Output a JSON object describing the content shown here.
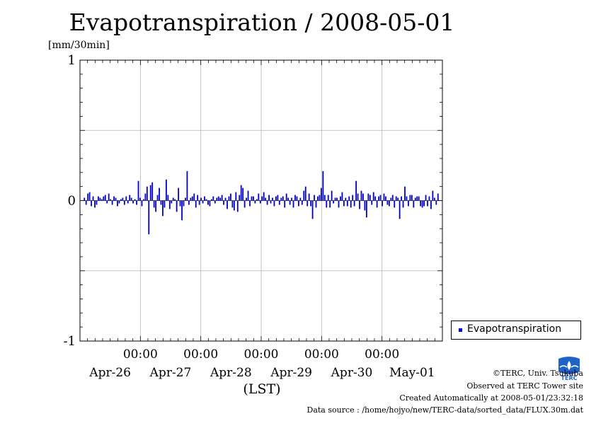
{
  "title": "Evapotranspiration / 2008-05-01",
  "legend": {
    "label": "Evapotranspiration"
  },
  "credits": {
    "copyright": "©TERC, Univ. Tsukuba",
    "observed": "Observed at TERC Tower site",
    "created": "Created Automatically at 2008-05-01/23:32:18",
    "source": "Data source : /home/hojyo/new/TERC-data/sorted_data/FLUX.30m.dat"
  },
  "logo": {
    "text": "TERC"
  },
  "chart_data": {
    "type": "bar",
    "title": "Evapotranspiration / 2008-05-01",
    "ylabel": "[mm/30min]",
    "xlabel": "(LST)",
    "ylim": [
      -1,
      1
    ],
    "yticks": [
      {
        "value": -1,
        "label": "-1"
      },
      {
        "value": 0,
        "label": "0"
      },
      {
        "value": 1,
        "label": "1"
      }
    ],
    "xlim": [
      0,
      6
    ],
    "xticks": [
      {
        "value": 1,
        "time": "00:00",
        "date": ""
      },
      {
        "value": 2,
        "time": "00:00",
        "date": ""
      },
      {
        "value": 3,
        "time": "00:00",
        "date": ""
      },
      {
        "value": 4,
        "time": "00:00",
        "date": ""
      },
      {
        "value": 5,
        "time": "00:00",
        "date": ""
      }
    ],
    "date_labels": [
      "Apr-26",
      "Apr-27",
      "Apr-28",
      "Apr-29",
      "Apr-30",
      "May-01"
    ],
    "grid": true,
    "legend_position": "right",
    "color": "#0000c8",
    "series": [
      {
        "name": "Evapotranspiration",
        "values": [
          0.02,
          -0.03,
          0.05,
          0.06,
          -0.04,
          0.03,
          -0.05,
          -0.03,
          0.03,
          0.02,
          0.01,
          0.03,
          0.04,
          -0.02,
          0.05,
          0.01,
          -0.03,
          0.03,
          0.02,
          -0.04,
          -0.02,
          0.01,
          0.02,
          -0.03,
          0.03,
          -0.02,
          0.04,
          0.02,
          -0.02,
          0.01,
          -0.03,
          0.14,
          0.02,
          -0.04,
          0.01,
          0.05,
          0.1,
          -0.24,
          0.11,
          0.13,
          -0.05,
          -0.08,
          0.04,
          0.09,
          -0.03,
          -0.11,
          -0.05,
          0.15,
          0.04,
          -0.06,
          -0.02,
          0.02,
          0.01,
          -0.08,
          0.09,
          -0.04,
          -0.14,
          -0.04,
          0.02,
          0.21,
          -0.03,
          0.02,
          0.03,
          0.05,
          -0.05,
          0.04,
          -0.03,
          0.02,
          -0.02,
          0.03,
          0.01,
          -0.03,
          -0.04,
          0.01,
          0.03,
          -0.02,
          0.02,
          0.03,
          0.02,
          0.04,
          -0.03,
          0.02,
          -0.06,
          0.03,
          0.05,
          -0.05,
          -0.07,
          0.06,
          -0.08,
          0.04,
          0.11,
          0.09,
          -0.05,
          0.02,
          0.07,
          -0.04,
          0.03,
          0.03,
          -0.02,
          0.01,
          0.05,
          -0.02,
          0.03,
          0.06,
          0.02,
          -0.03,
          0.04,
          -0.02,
          0.02,
          -0.04,
          0.03,
          0.04,
          -0.03,
          0.02,
          0.03,
          -0.05,
          0.05,
          0.02,
          -0.03,
          0.02,
          -0.05,
          0.04,
          0.03,
          -0.04,
          0.02,
          -0.03,
          0.07,
          0.1,
          -0.04,
          0.05,
          -0.04,
          -0.13,
          0.04,
          -0.05,
          0.03,
          0.04,
          0.09,
          0.21,
          0.04,
          -0.05,
          0.04,
          -0.05,
          0.07,
          -0.02,
          0.02,
          0.02,
          -0.05,
          0.03,
          0.06,
          -0.04,
          0.02,
          -0.04,
          0.03,
          -0.05,
          0.04,
          -0.04,
          0.14,
          0.05,
          -0.06,
          0.07,
          0.05,
          -0.07,
          -0.12,
          0.05,
          0.04,
          -0.03,
          0.06,
          0.03,
          -0.05,
          0.03,
          0.04,
          -0.04,
          0.05,
          0.03,
          -0.03,
          -0.04,
          0.02,
          0.04,
          -0.05,
          0.03,
          0.02,
          -0.13,
          0.03,
          -0.05,
          0.1,
          0.03,
          -0.04,
          0.04,
          0.04,
          -0.05,
          0.02,
          0.03,
          0.03,
          -0.04,
          -0.05,
          -0.04,
          0.04,
          -0.04,
          0.03,
          -0.06,
          0.07,
          0.02,
          -0.03,
          0.05
        ]
      }
    ]
  }
}
